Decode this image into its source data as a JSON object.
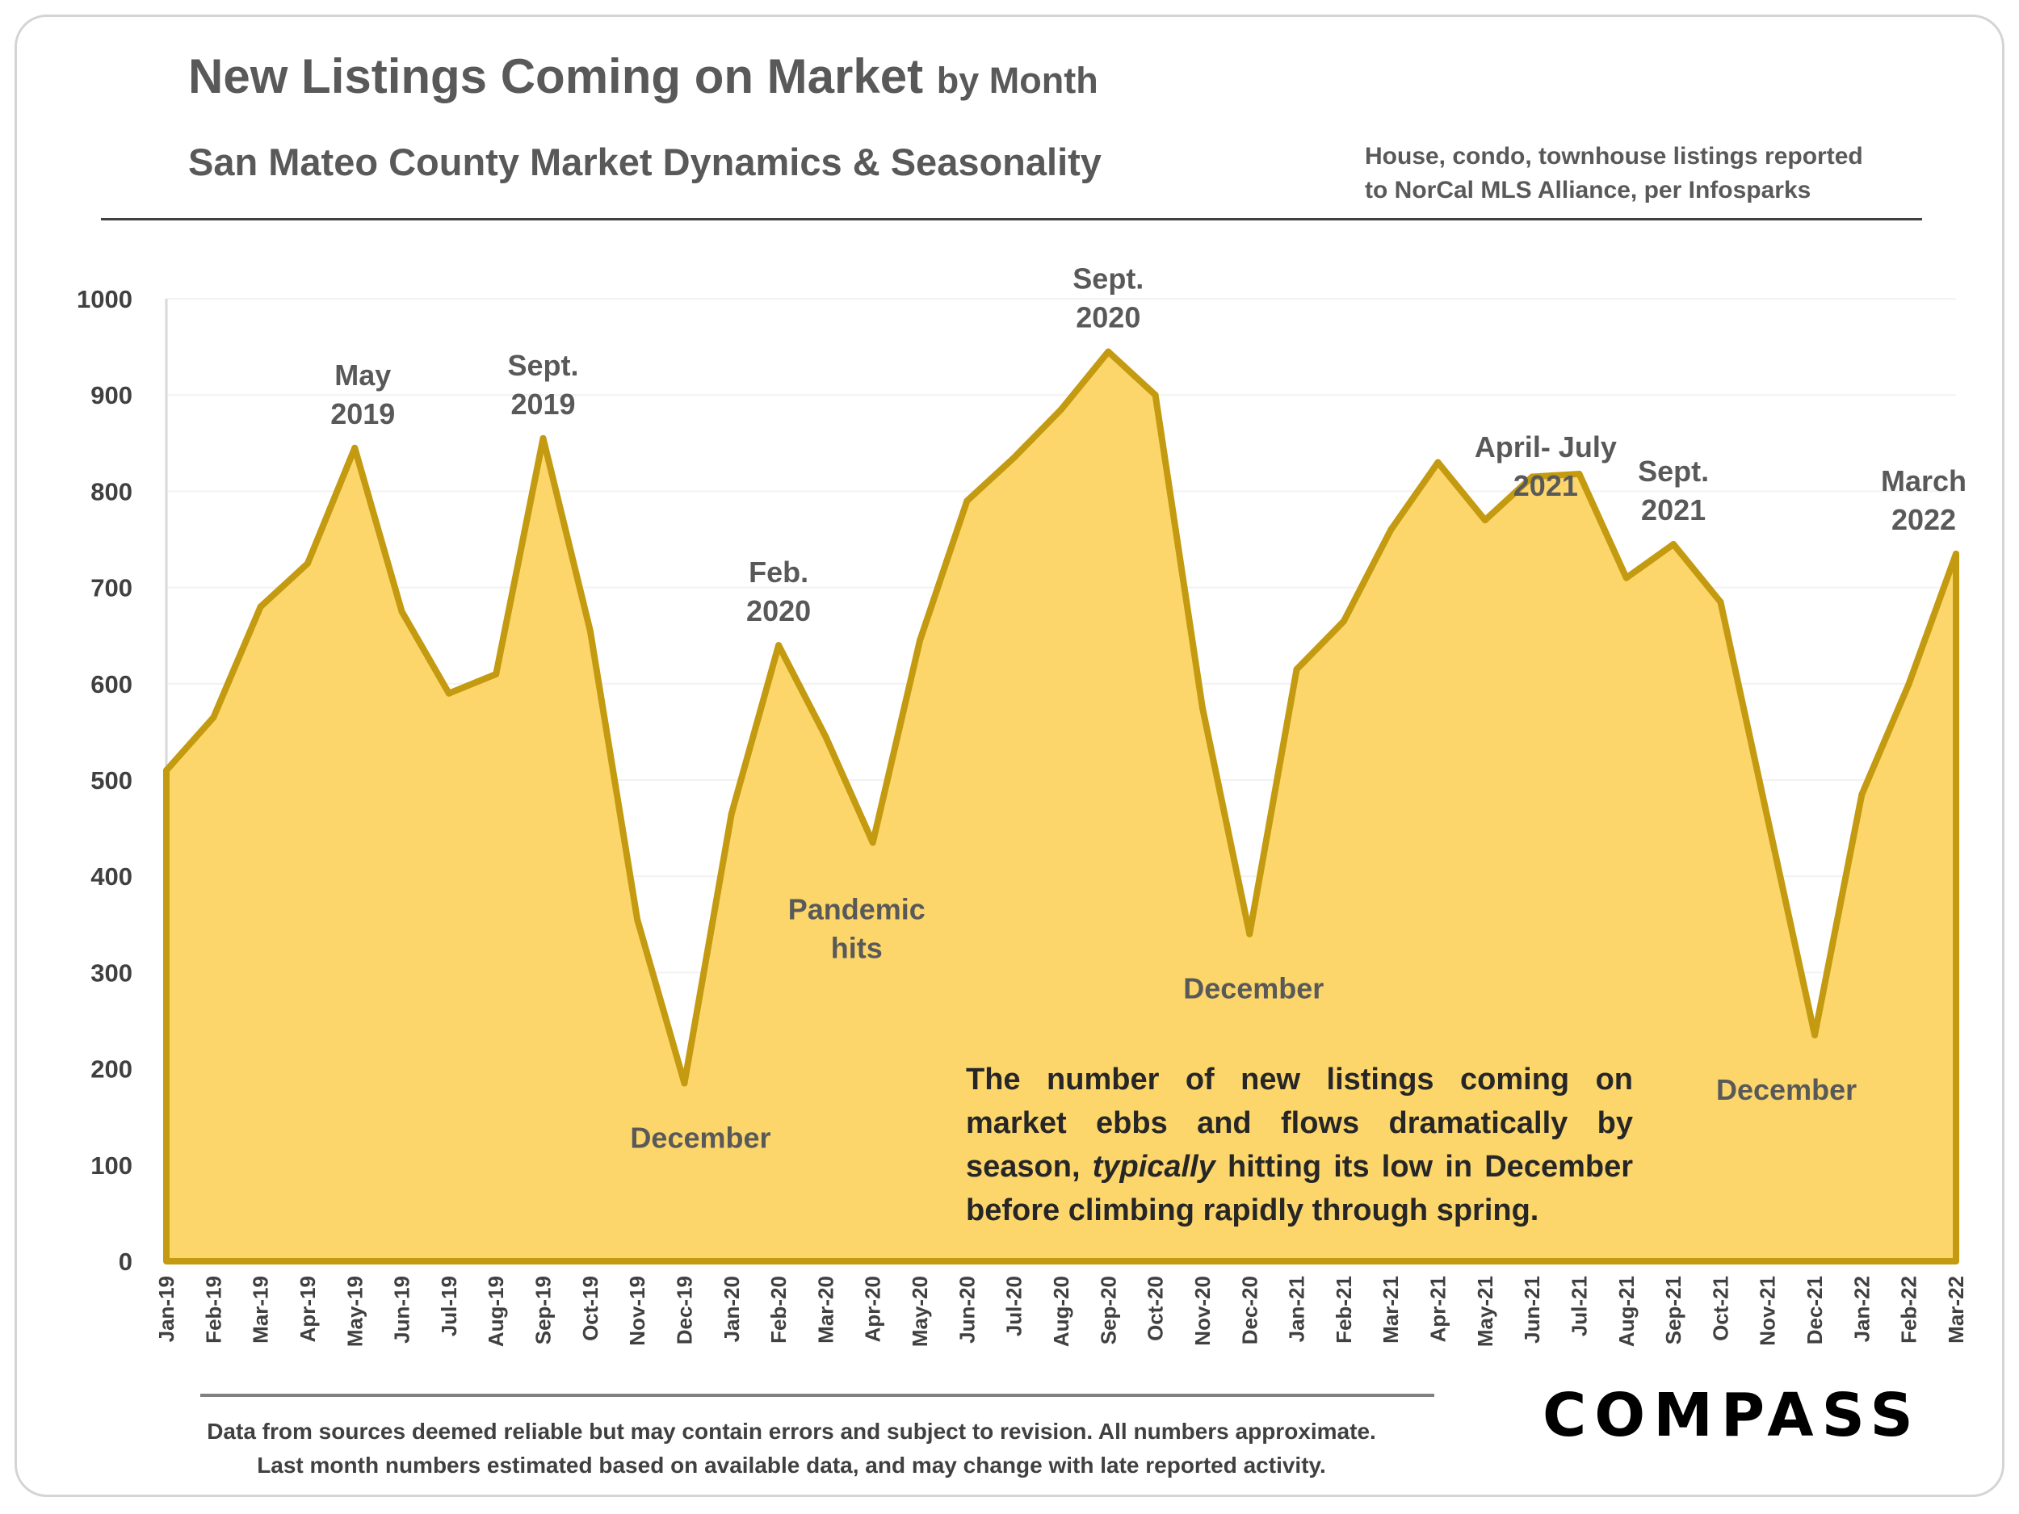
{
  "title": {
    "main": "New Listings Coming on Market",
    "suffix": "by Month"
  },
  "subtitle": "San Mateo County Market Dynamics & Seasonality",
  "source_note": [
    "House, condo, townhouse listings reported",
    "to NorCal MLS Alliance, per Infosparks"
  ],
  "body_note": {
    "before_italic": "The number of new listings coming on market ebbs and flows dramatically by season, ",
    "italic": "typically",
    "after_italic": " hitting its low in December before climbing rapidly through spring."
  },
  "footer": [
    "Data from sources deemed reliable but may contain errors and subject to revision. All numbers approximate.",
    "Last month numbers estimated based on available data, and may change with late reported activity."
  ],
  "logo": "COMPASS",
  "colors": {
    "fill": "#fcd66b",
    "line": "#c49a10",
    "text": "#595959",
    "grid": "#f2f2f2"
  },
  "chart_data": {
    "type": "area",
    "ylim": [
      0,
      1000
    ],
    "yticks": [
      0,
      100,
      200,
      300,
      400,
      500,
      600,
      700,
      800,
      900,
      1000
    ],
    "grid": true,
    "categories": [
      "Jan-19",
      "Feb-19",
      "Mar-19",
      "Apr-19",
      "May-19",
      "Jun-19",
      "Jul-19",
      "Aug-19",
      "Sep-19",
      "Oct-19",
      "Nov-19",
      "Dec-19",
      "Jan-20",
      "Feb-20",
      "Mar-20",
      "Apr-20",
      "May-20",
      "Jun-20",
      "Jul-20",
      "Aug-20",
      "Sep-20",
      "Oct-20",
      "Nov-20",
      "Dec-20",
      "Jan-21",
      "Feb-21",
      "Mar-21",
      "Apr-21",
      "May-21",
      "Jun-21",
      "Jul-21",
      "Aug-21",
      "Sep-21",
      "Oct-21",
      "Nov-21",
      "Dec-21",
      "Jan-22",
      "Feb-22",
      "Mar-22"
    ],
    "values": [
      510,
      565,
      680,
      725,
      845,
      675,
      590,
      610,
      855,
      655,
      355,
      185,
      465,
      640,
      545,
      435,
      645,
      790,
      835,
      885,
      945,
      900,
      575,
      340,
      615,
      665,
      760,
      830,
      770,
      815,
      818,
      710,
      745,
      685,
      460,
      235,
      485,
      600,
      735
    ],
    "annotations": [
      {
        "lines": [
          "May",
          "2019"
        ],
        "index": 4,
        "pos": "above"
      },
      {
        "lines": [
          "Sept.",
          "2019"
        ],
        "index": 8,
        "pos": "above"
      },
      {
        "lines": [
          "December"
        ],
        "index": 11,
        "pos": "below"
      },
      {
        "lines": [
          "Feb.",
          "2020"
        ],
        "index": 13,
        "pos": "above"
      },
      {
        "lines": [
          "Pandemic",
          "hits"
        ],
        "index": 15,
        "pos": "inside"
      },
      {
        "lines": [
          "Sept.",
          "2020"
        ],
        "index": 20,
        "pos": "above"
      },
      {
        "lines": [
          "December"
        ],
        "index": 23,
        "pos": "below"
      },
      {
        "lines": [
          "April- July",
          "2021"
        ],
        "index": 28,
        "pos": "above"
      },
      {
        "lines": [
          "Sept.",
          "2021"
        ],
        "index": 32,
        "pos": "above"
      },
      {
        "lines": [
          "December"
        ],
        "index": 35,
        "pos": "below"
      },
      {
        "lines": [
          "March",
          "2022"
        ],
        "index": 38,
        "pos": "above"
      }
    ]
  }
}
